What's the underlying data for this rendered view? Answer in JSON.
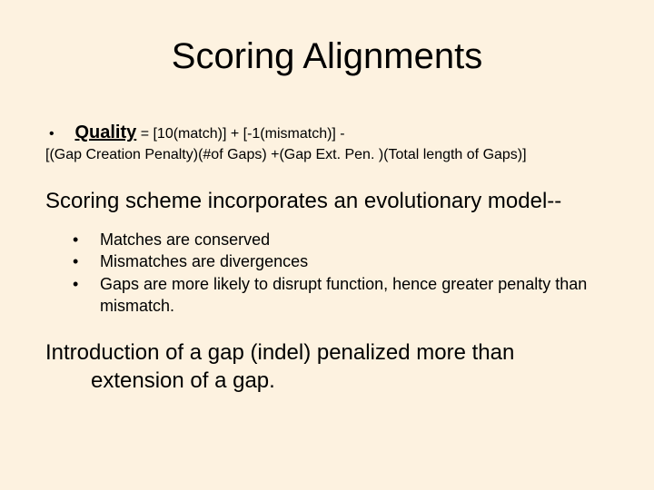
{
  "background_color": "#fdf2e0",
  "text_color": "#000000",
  "title": {
    "text": "Scoring Alignments",
    "fontsize": 40
  },
  "formula": {
    "bullet": "•",
    "quality_label": "Quality",
    "line1_rest": " = [10(match)] + [-1(mismatch)]  -",
    "line2": "[(Gap Creation Penalty)(#of Gaps) +(Gap Ext. Pen. )(Total length of Gaps)]",
    "fontsize_small": 16,
    "fontsize_label": 20
  },
  "subheading": {
    "text": "Scoring scheme incorporates an evolutionary model--",
    "fontsize": 24
  },
  "bullets": {
    "items": [
      "Matches are conserved",
      "Mismatches are divergences",
      "Gaps are more likely to disrupt function, hence greater penalty than mismatch."
    ],
    "fontsize": 18
  },
  "closing": {
    "text": "Introduction of a gap (indel) penalized more than extension of a gap.",
    "fontsize": 24
  }
}
